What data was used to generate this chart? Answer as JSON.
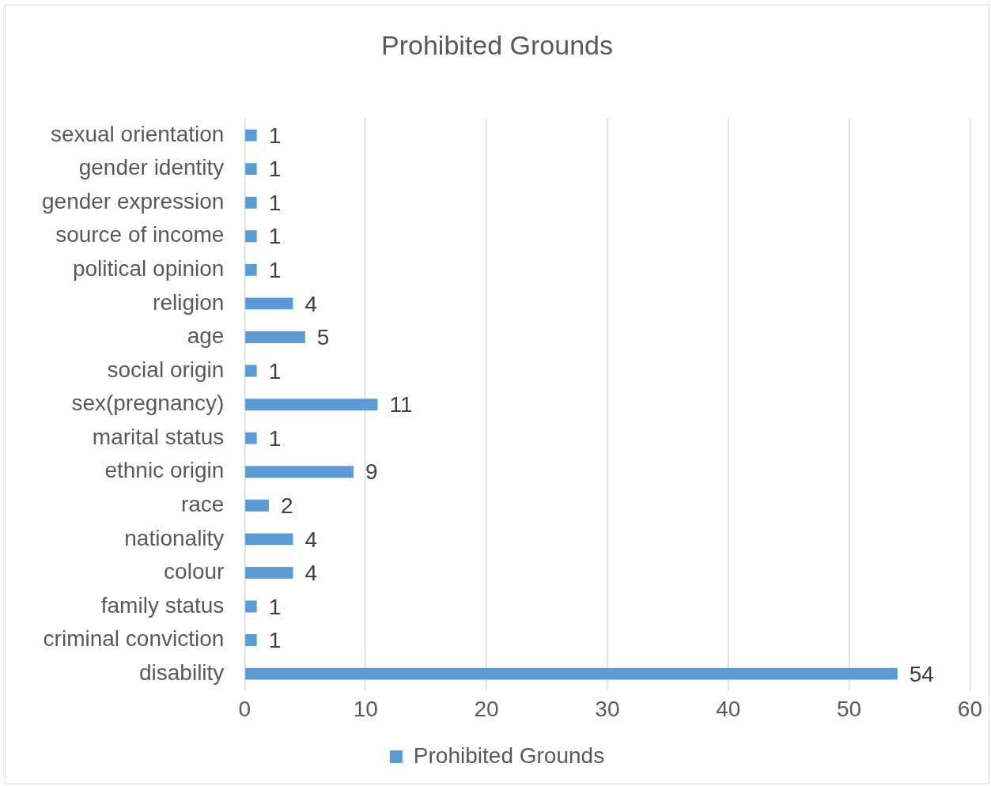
{
  "chart_data": {
    "type": "bar",
    "orientation": "horizontal",
    "title": "Prohibited Grounds",
    "categories": [
      "sexual orientation",
      "gender identity",
      "gender expression",
      "source of income",
      "political opinion",
      "religion",
      "age",
      "social origin",
      "sex(pregnancy)",
      "marital status",
      "ethnic origin",
      "race",
      "nationality",
      "colour",
      "family status",
      "criminal conviction",
      "disability"
    ],
    "series": [
      {
        "name": "Prohibited Grounds",
        "color": "#5b9bd5",
        "values": [
          1,
          1,
          1,
          1,
          1,
          4,
          5,
          1,
          11,
          1,
          9,
          2,
          4,
          4,
          1,
          1,
          54
        ]
      }
    ],
    "xlim": [
      0,
      60
    ],
    "xticks": [
      0,
      10,
      20,
      30,
      40,
      50,
      60
    ],
    "grid": "x",
    "legend": "bottom",
    "data_labels": true
  }
}
